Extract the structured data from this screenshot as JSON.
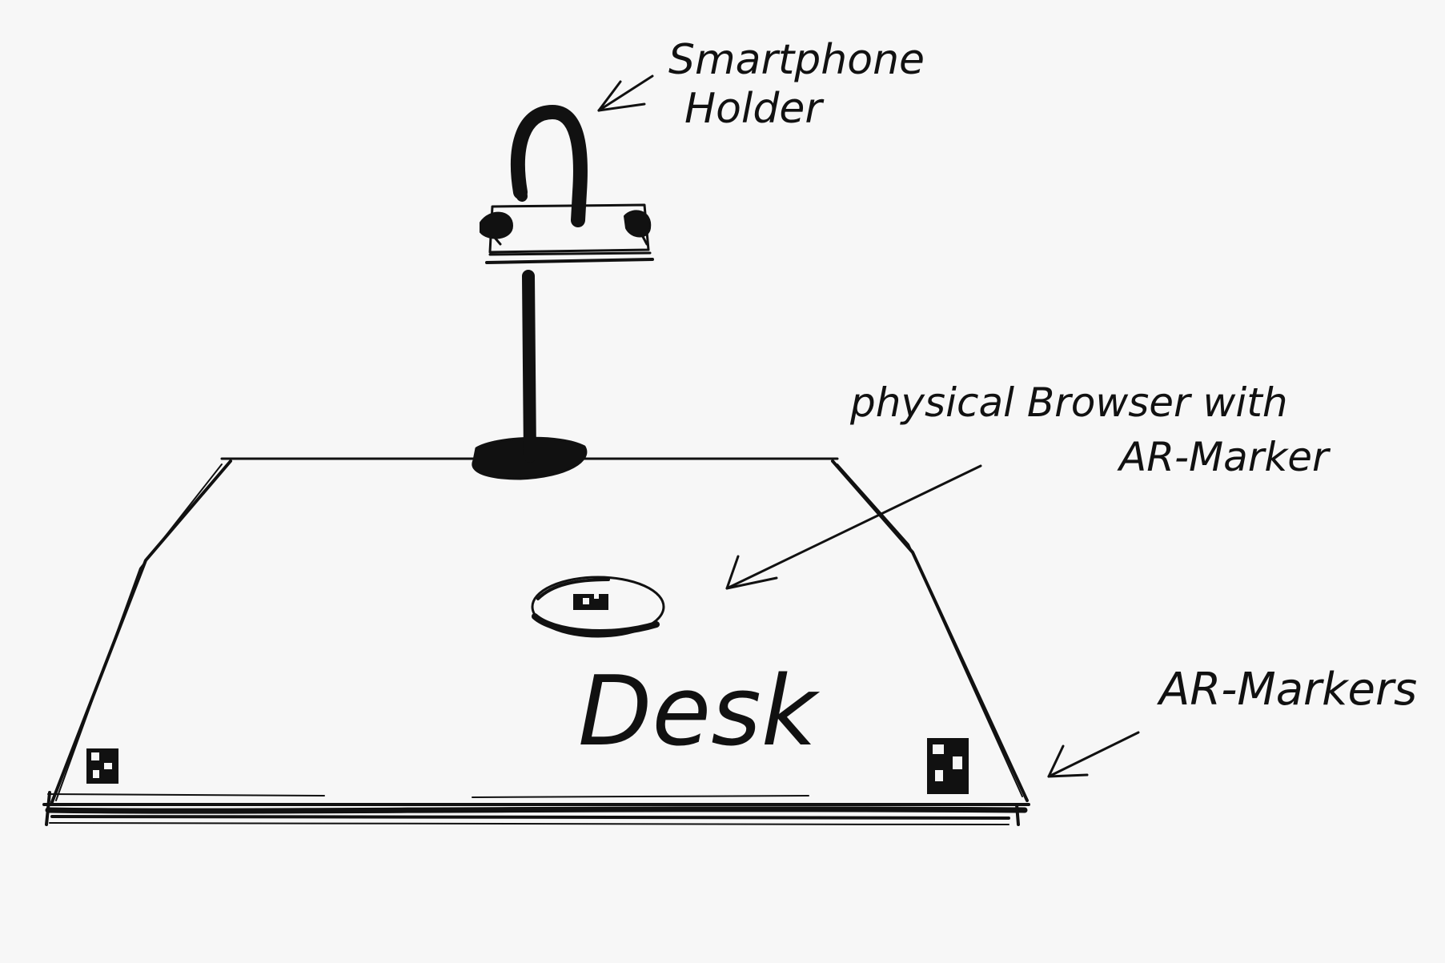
{
  "labels": {
    "smartphone_line1": "Smartphone",
    "smartphone_line2": "Holder",
    "browser_line1": "physical Browser with",
    "browser_line2": "AR-Marker",
    "desk": "Desk",
    "markers": "AR-Markers"
  },
  "colors": {
    "ink": "#111111",
    "paper": "#f7f7f7"
  }
}
